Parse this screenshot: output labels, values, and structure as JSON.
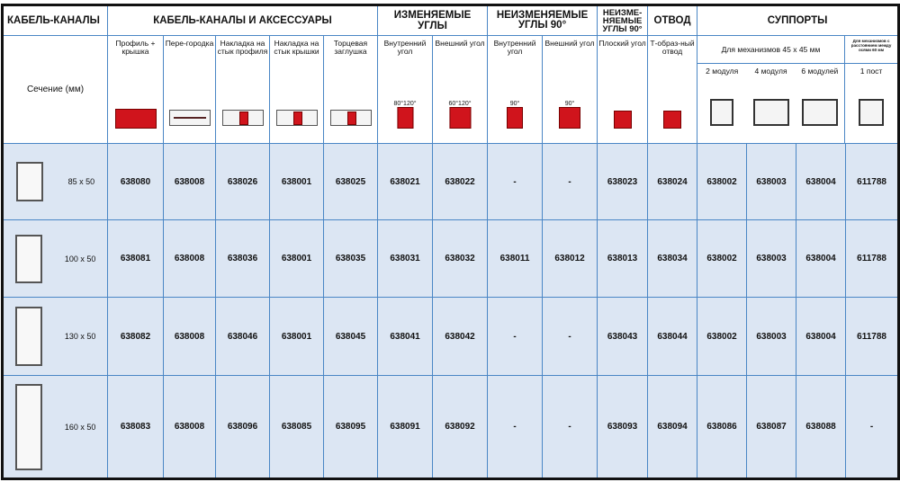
{
  "header": {
    "col1": "КАБЕЛЬ-КАНАЛЫ",
    "group1": "КАБЕЛЬ-КАНАЛЫ И АКСЕССУАРЫ",
    "group2": "ИЗМЕНЯЕМЫЕ УГЛЫ",
    "group3": "НЕИЗМЕНЯЕМЫЕ УГЛЫ 90°",
    "group4": "НЕИЗМЕ-НЯЕМЫЕ УГЛЫ 90°",
    "group5": "ОТВОД",
    "group6": "СУППОРТЫ",
    "section_label": "Сечение (мм)",
    "supports_sub": "Для механизмов 45 x 45 мм",
    "supports_sub2": "Для механизмов с расстоянием между осями 60 мм"
  },
  "columns": [
    {
      "label": "Профиль + крышка",
      "icon": "profile-cover-icon"
    },
    {
      "label": "Пере-городка",
      "icon": "partition-icon"
    },
    {
      "label": "Накладка на стык профиля",
      "icon": "profile-joint-icon"
    },
    {
      "label": "Накладка на стык крышки",
      "icon": "cover-joint-icon"
    },
    {
      "label": "Торцевая заглушка",
      "icon": "end-cap-icon"
    },
    {
      "label": "Внутренний угол",
      "angle": "80°120°",
      "icon": "inner-corner-icon"
    },
    {
      "label": "Внешний угол",
      "angle": "60°120°",
      "icon": "outer-corner-icon"
    },
    {
      "label": "Внутренний угол",
      "angle": "90°",
      "icon": "inner-corner-icon"
    },
    {
      "label": "Внешний угол",
      "angle": "90°",
      "icon": "outer-corner-icon"
    },
    {
      "label": "Плоский угол",
      "icon": "flat-corner-icon"
    },
    {
      "label": "Т-образ-ный отвод",
      "icon": "t-branch-icon"
    },
    {
      "label": "2 модуля",
      "icon": "support-2-icon"
    },
    {
      "label": "4 модуля",
      "icon": "support-4-icon"
    },
    {
      "label": "6 модулей",
      "icon": "support-6-icon"
    },
    {
      "label": "1 пост",
      "icon": "support-1-icon"
    }
  ],
  "rows": [
    {
      "section": "85 x 50",
      "codes": [
        "638080",
        "638008",
        "638026",
        "638001",
        "638025",
        "638021",
        "638022",
        "-",
        "-",
        "638023",
        "638024",
        "638002",
        "638003",
        "638004",
        "611788"
      ]
    },
    {
      "section": "100 x 50",
      "codes": [
        "638081",
        "638008",
        "638036",
        "638001",
        "638035",
        "638031",
        "638032",
        "638011",
        "638012",
        "638013",
        "638034",
        "638002",
        "638003",
        "638004",
        "611788"
      ]
    },
    {
      "section": "130 x 50",
      "codes": [
        "638082",
        "638008",
        "638046",
        "638001",
        "638045",
        "638041",
        "638042",
        "-",
        "-",
        "638043",
        "638044",
        "638002",
        "638003",
        "638004",
        "611788"
      ]
    },
    {
      "section": "160 x 50",
      "codes": [
        "638083",
        "638008",
        "638096",
        "638085",
        "638095",
        "638091",
        "638092",
        "-",
        "-",
        "638093",
        "638094",
        "638086",
        "638087",
        "638088",
        "-"
      ]
    }
  ],
  "colors": {
    "border": "#4a86c5",
    "row_bg": "#dce6f3",
    "accent_red": "#d0141c"
  }
}
